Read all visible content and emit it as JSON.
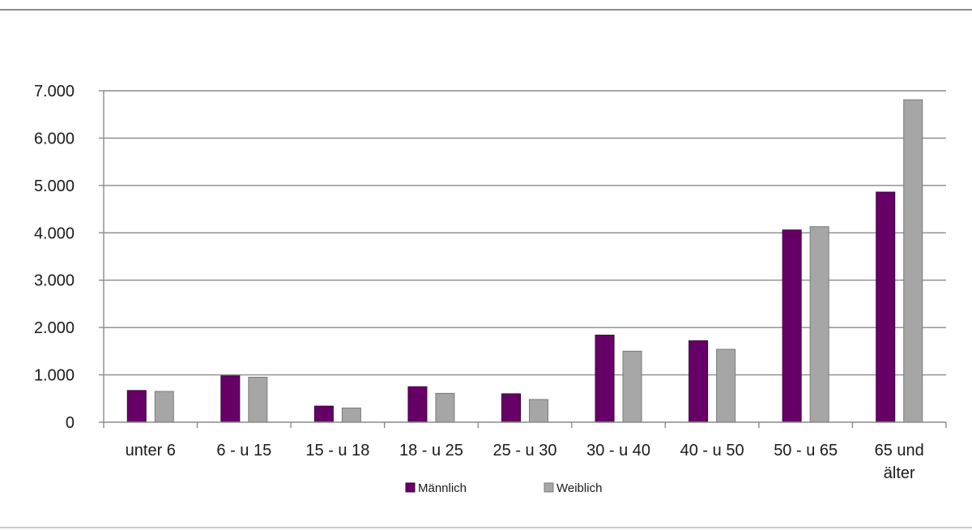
{
  "chart_data": {
    "type": "bar",
    "categories": [
      [
        "unter 6"
      ],
      [
        "6 - u 15"
      ],
      [
        "15 - u 18"
      ],
      [
        "18 - u 25"
      ],
      [
        "25 - u 30"
      ],
      [
        "30 - u 40"
      ],
      [
        "40 - u 50"
      ],
      [
        "50 - u 65"
      ],
      [
        "65 und",
        "älter"
      ]
    ],
    "series": [
      {
        "name": "Männlich",
        "color": "#660066",
        "values": [
          670,
          980,
          340,
          750,
          600,
          1840,
          1720,
          4060,
          4860
        ]
      },
      {
        "name": "Weiblich",
        "color": "#a6a6a6",
        "values": [
          650,
          950,
          300,
          610,
          480,
          1500,
          1540,
          4130,
          6810
        ]
      }
    ],
    "yticks": [
      "0",
      "1.000",
      "2.000",
      "3.000",
      "4.000",
      "5.000",
      "6.000",
      "7.000"
    ],
    "ylim": [
      0,
      7000
    ],
    "grid": true,
    "legend_position": "bottom"
  }
}
